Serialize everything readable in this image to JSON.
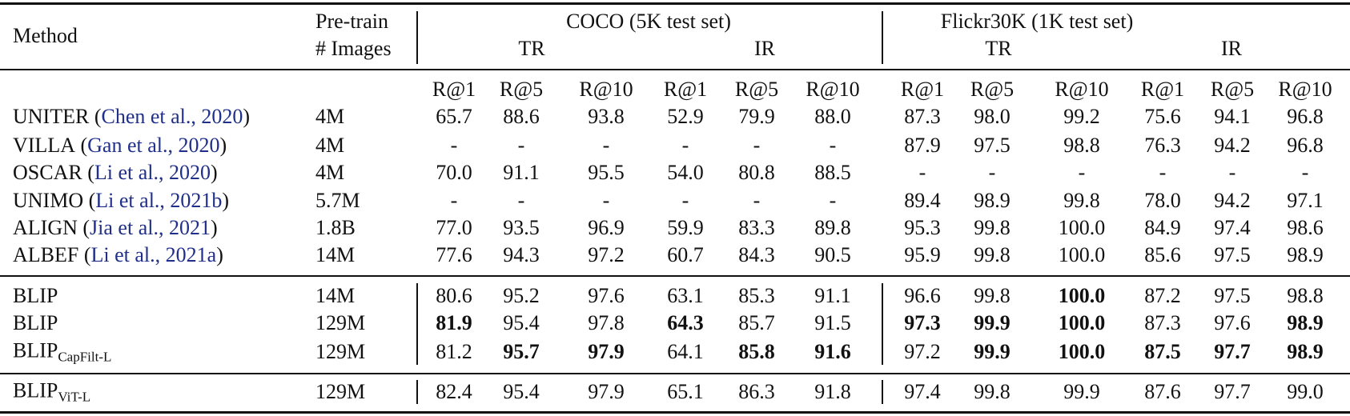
{
  "table": {
    "header": {
      "method": "Method",
      "pretrain": [
        "Pre-train",
        "# Images"
      ],
      "groups": [
        {
          "title": "COCO (5K test set)",
          "subgroups": [
            "TR",
            "IR"
          ]
        },
        {
          "title": "Flickr30K (1K test set)",
          "subgroups": [
            "TR",
            "IR"
          ]
        }
      ],
      "metrics": [
        "R@1",
        "R@5",
        "R@10",
        "R@1",
        "R@5",
        "R@10",
        "R@1",
        "R@5",
        "R@10",
        "R@1",
        "R@5",
        "R@10"
      ]
    },
    "sections": [
      [
        {
          "method": "UNITER",
          "citation": [
            "(",
            "Chen et al., 2020",
            ")"
          ],
          "pretrain": "4M",
          "cells": [
            "65.7",
            "88.6",
            "93.8",
            "52.9",
            "79.9",
            "88.0",
            "87.3",
            "98.0",
            "99.2",
            "75.6",
            "94.1",
            "96.8"
          ]
        },
        {
          "method": "VILLA",
          "citation": [
            "(",
            "Gan et al., 2020",
            ")"
          ],
          "pretrain": "4M",
          "cells": [
            "-",
            "-",
            "-",
            "-",
            "-",
            "-",
            "87.9",
            "97.5",
            "98.8",
            "76.3",
            "94.2",
            "96.8"
          ]
        },
        {
          "method": "OSCAR",
          "citation": [
            "(",
            "Li et al., 2020",
            ")"
          ],
          "pretrain": "4M",
          "cells": [
            "70.0",
            "91.1",
            "95.5",
            "54.0",
            "80.8",
            "88.5",
            "-",
            "-",
            "-",
            "-",
            "-",
            "-"
          ]
        },
        {
          "method": "UNIMO",
          "citation": [
            "(",
            "Li et al., 2021b",
            ")"
          ],
          "pretrain": "5.7M",
          "cells": [
            "-",
            "-",
            "-",
            "-",
            "-",
            "-",
            "89.4",
            "98.9",
            "99.8",
            "78.0",
            "94.2",
            "97.1"
          ]
        },
        {
          "method": "ALIGN",
          "citation": [
            "(",
            "Jia et al., 2021",
            ")"
          ],
          "pretrain": "1.8B",
          "cells": [
            "77.0",
            "93.5",
            "96.9",
            "59.9",
            "83.3",
            "89.8",
            "95.3",
            "99.8",
            "100.0",
            "84.9",
            "97.4",
            "98.6"
          ]
        },
        {
          "method": "ALBEF",
          "citation": [
            "(",
            "Li et al., 2021a",
            ")"
          ],
          "pretrain": "14M",
          "cells": [
            "77.6",
            "94.3",
            "97.2",
            "60.7",
            "84.3",
            "90.5",
            "95.9",
            "99.8",
            "100.0",
            "85.6",
            "97.5",
            "98.9"
          ]
        }
      ],
      [
        {
          "method": "BLIP",
          "pretrain": "14M",
          "cells": [
            "80.6",
            "95.2",
            "97.6",
            "63.1",
            "85.3",
            "91.1",
            "96.6",
            "99.8",
            {
              "text": "100.0",
              "bold": true
            },
            "87.2",
            "97.5",
            "98.8"
          ]
        },
        {
          "method": "BLIP",
          "pretrain": "129M",
          "cells": [
            {
              "text": "81.9",
              "bold": true
            },
            "95.4",
            "97.8",
            {
              "text": "64.3",
              "bold": true
            },
            "85.7",
            "91.5",
            {
              "text": "97.3",
              "bold": true
            },
            {
              "text": "99.9",
              "bold": true
            },
            {
              "text": "100.0",
              "bold": true
            },
            "87.3",
            "97.6",
            {
              "text": "98.9",
              "bold": true
            }
          ]
        },
        {
          "method": "BLIP",
          "subscript": "CapFilt-L",
          "pretrain": "129M",
          "cells": [
            "81.2",
            {
              "text": "95.7",
              "bold": true
            },
            {
              "text": "97.9",
              "bold": true
            },
            "64.1",
            {
              "text": "85.8",
              "bold": true
            },
            {
              "text": "91.6",
              "bold": true
            },
            "97.2",
            {
              "text": "99.9",
              "bold": true
            },
            {
              "text": "100.0",
              "bold": true
            },
            {
              "text": "87.5",
              "bold": true
            },
            {
              "text": "97.7",
              "bold": true
            },
            {
              "text": "98.9",
              "bold": true
            }
          ]
        }
      ],
      [
        {
          "method": "BLIP",
          "subscript": "ViT-L",
          "pretrain": "129M",
          "cells": [
            "82.4",
            "95.4",
            "97.9",
            "65.1",
            "86.3",
            "91.8",
            "97.4",
            "99.8",
            "99.9",
            "87.6",
            "97.7",
            "99.0"
          ]
        }
      ]
    ]
  }
}
